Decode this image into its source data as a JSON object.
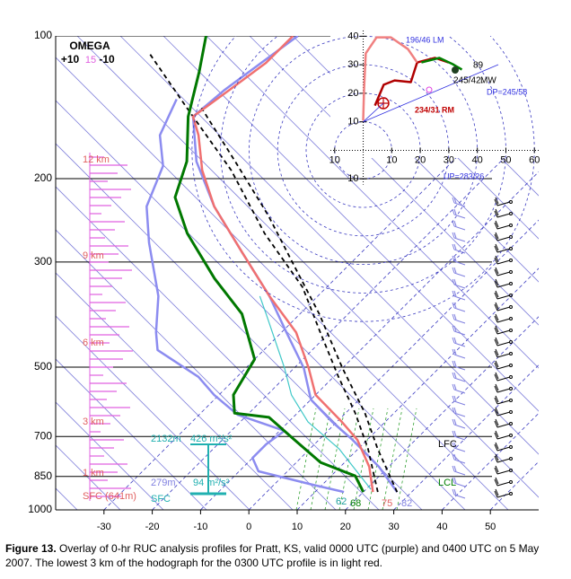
{
  "caption": {
    "label": "Figure 13.",
    "text": "Overlay of 0-hr RUC analysis profiles for Pratt, KS, valid 0000 UTC (purple) and 0400 UTC on 5 May 2007.  The lowest 3 km of the hodograph for the 0300 UTC profile is in light red."
  },
  "chart_data": [
    {
      "type": "skewt",
      "omega_label": "OMEGA",
      "omega_scale": [
        "+10",
        "15",
        "-10"
      ],
      "xlim": [
        -40,
        60
      ],
      "xticks": [
        -30,
        -20,
        -10,
        0,
        10,
        20,
        30,
        40,
        50
      ],
      "ylim": [
        1000,
        100
      ],
      "yticks": [
        100,
        200,
        300,
        500,
        700,
        850,
        1000
      ],
      "log_y": true,
      "height_labels": [
        "12 km",
        "9 km",
        "6 km",
        "3 km",
        "1 km",
        "SFC (641m)"
      ],
      "annotations": [
        "2132m",
        "426 m²/s²",
        "279m",
        "94 m²/s²",
        "SFC",
        "LFC",
        "LCL",
        "62",
        "68",
        "75",
        "82"
      ],
      "series": [
        {
          "color": "#8c8cf0",
          "width": 2.5,
          "dashed": false,
          "x": [
            16,
            8,
            -6,
            -10,
            -10,
            -9,
            -22,
            -31,
            -38,
            -52,
            -56,
            -63,
            -76,
            -84,
            -89,
            -96,
            -100
          ],
          "values": [
            917,
            885,
            829,
            777,
            727,
            681,
            630,
            572,
            524,
            460,
            422,
            354,
            273,
            229,
            188,
            162,
            136
          ]
        },
        {
          "color": "#8c8cf0",
          "width": 2.5,
          "dashed": false,
          "x": [
            27,
            18,
            7,
            -1,
            -10,
            -18,
            -29,
            -40,
            -55,
            -70,
            -83,
            -93,
            -92,
            -90,
            -88
          ],
          "values": [
            917,
            811,
            712,
            652,
            585,
            502,
            422,
            354,
            285,
            229,
            184,
            148,
            130,
            114,
            100
          ]
        },
        {
          "color": "#40c8c8",
          "width": 1.2,
          "dashed": false,
          "x": [
            21,
            6,
            -6,
            -15,
            -22,
            -37,
            -42
          ],
          "values": [
            905,
            743,
            652,
            572,
            502,
            386,
            354
          ]
        },
        {
          "color": "#000000",
          "width": 1.8,
          "dashed": true,
          "x": [
            23,
            12,
            2,
            -9,
            -22,
            -35,
            -54,
            -74,
            -96,
            -115
          ],
          "values": [
            917,
            743,
            625,
            524,
            422,
            339,
            261,
            192,
            142,
            109
          ]
        },
        {
          "color": "#000000",
          "width": 1.8,
          "dashed": true,
          "x": [
            27,
            14,
            4,
            -10,
            -26,
            -40,
            -57,
            -75,
            -93
          ],
          "values": [
            917,
            743,
            625,
            502,
            386,
            311,
            239,
            184,
            142
          ]
        },
        {
          "color": "#f07070",
          "width": 2.5,
          "dashed": false,
          "x": [
            22,
            16,
            8,
            1,
            -10,
            -17,
            -27,
            -40,
            -55,
            -70,
            -80,
            -88,
            -93,
            -91,
            -89,
            -89
          ],
          "values": [
            917,
            811,
            712,
            652,
            572,
            502,
            422,
            354,
            285,
            229,
            192,
            162,
            148,
            130,
            114,
            100
          ]
        },
        {
          "color": "#007800",
          "width": 3,
          "dashed": false,
          "x": [
            20,
            15,
            5,
            -5,
            -15,
            -23,
            -27,
            -30,
            -42,
            -55,
            -70,
            -80,
            -85,
            -94,
            -101,
            -107
          ],
          "values": [
            917,
            848,
            794,
            712,
            638,
            625,
            572,
            481,
            386,
            325,
            261,
            219,
            184,
            148,
            119,
            100
          ]
        }
      ]
    },
    {
      "type": "hodograph",
      "xlim": [
        -11.5,
        61.5
      ],
      "ylim": [
        -12,
        42
      ],
      "xticks": [
        {
          "value": -10,
          "label": "10"
        },
        10,
        20,
        30,
        40,
        50,
        60
      ],
      "yticks": [
        {
          "value": -10,
          "label": "10"
        },
        10,
        20,
        30,
        40
      ],
      "labels": [
        "196/46 LM",
        "245/42.",
        "MW",
        "DP=245/58",
        "234/31 RM",
        "UP=283/26",
        "89"
      ],
      "series": [
        {
          "color": "#b00000",
          "width": 2.5,
          "x": [
            4.1,
            7.2,
            11,
            16.7,
            18.9,
            25.2,
            29.9
          ],
          "values": [
            15.7,
            23,
            24.5,
            23.9,
            30.8,
            32.4,
            30.8
          ]
        },
        {
          "color": "#f08080",
          "width": 2.5,
          "x": [
            0,
            0.3,
            0.9,
            4.7,
            9.7,
            15.7,
            18.9
          ],
          "values": [
            10.4,
            21.4,
            34,
            39.6,
            39.6,
            35.5,
            30.8
          ]
        },
        {
          "color": "#008000",
          "width": 2.5,
          "x": [
            20.4,
            26.7,
            31.4,
            34.6
          ],
          "values": [
            30.8,
            32.4,
            30.2,
            28.3
          ]
        }
      ]
    }
  ]
}
